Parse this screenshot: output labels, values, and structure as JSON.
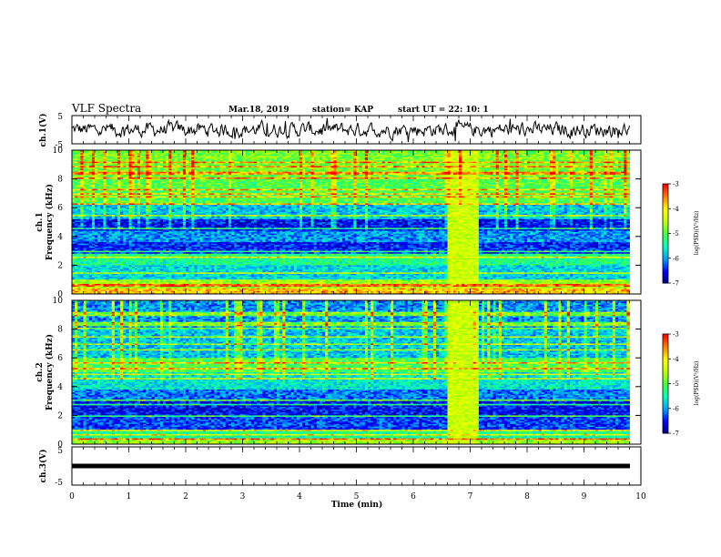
{
  "header": {
    "title": "VLF Spectra",
    "date": "Mar.18, 2019",
    "station": "station= KAP",
    "start_time": "start  UT =   22: 10: 1"
  },
  "chart_data": [
    {
      "type": "line",
      "name": "ch1-waveform",
      "ylabel": "ch.1(V)",
      "xlim": [
        0,
        10
      ],
      "ylim": [
        -5,
        5
      ],
      "yticks": [
        "5",
        "-5"
      ],
      "description_values": {
        "x_end": 9.8,
        "baseline": 0.0,
        "approx_amplitude": 2.0
      }
    },
    {
      "type": "heatmap",
      "name": "ch1-spectrogram",
      "ylabel": "ch.1\nFrequency (kHz)",
      "xlim": [
        0,
        10
      ],
      "ylim": [
        0,
        10
      ],
      "yticks": [
        "0",
        "2",
        "4",
        "6",
        "8",
        "10"
      ],
      "data_x_end": 9.8,
      "burst_interval_min": [
        6.6,
        7.15
      ],
      "bands_khz": [
        {
          "from": 0.0,
          "to": 0.4,
          "level": -5.0
        },
        {
          "from": 0.4,
          "to": 1.0,
          "level": -4.6
        },
        {
          "from": 1.0,
          "to": 2.0,
          "level": -5.7
        },
        {
          "from": 2.0,
          "to": 2.6,
          "level": -5.3
        },
        {
          "from": 2.6,
          "to": 3.6,
          "level": -6.4
        },
        {
          "from": 3.6,
          "to": 4.4,
          "level": -6.0
        },
        {
          "from": 4.4,
          "to": 5.2,
          "level": -6.5
        },
        {
          "from": 5.2,
          "to": 6.2,
          "level": -5.8
        },
        {
          "from": 6.2,
          "to": 8.0,
          "level": -5.0
        },
        {
          "from": 8.0,
          "to": 10.0,
          "level": -4.8
        }
      ],
      "colorbar": {
        "label": "log(PSD)(V²/Hz)",
        "range": [
          -7,
          -3
        ],
        "ticks": [
          "-3",
          "-4",
          "-5",
          "-6",
          "-7"
        ]
      }
    },
    {
      "type": "heatmap",
      "name": "ch2-spectrogram",
      "ylabel": "ch.2\nFrequency (kHz)",
      "xlim": [
        0,
        10
      ],
      "ylim": [
        0,
        10
      ],
      "yticks": [
        "0",
        "2",
        "4",
        "6",
        "8",
        "10"
      ],
      "data_x_end": 9.8,
      "burst_interval_min": [
        6.6,
        7.15
      ],
      "bands_khz": [
        {
          "from": 0.0,
          "to": 0.4,
          "level": -4.6
        },
        {
          "from": 0.4,
          "to": 1.0,
          "level": -5.3
        },
        {
          "from": 1.0,
          "to": 2.0,
          "level": -6.3
        },
        {
          "from": 2.0,
          "to": 3.0,
          "level": -6.5
        },
        {
          "from": 3.0,
          "to": 3.8,
          "level": -6.1
        },
        {
          "from": 3.8,
          "to": 5.0,
          "level": -5.6
        },
        {
          "from": 5.0,
          "to": 6.0,
          "level": -5.0
        },
        {
          "from": 6.0,
          "to": 8.0,
          "level": -5.8
        },
        {
          "from": 8.0,
          "to": 10.0,
          "level": -6.0
        }
      ],
      "colorbar": {
        "label": "log(PSD)(V²/Hz)",
        "range": [
          -7,
          -3
        ],
        "ticks": [
          "-3",
          "-4",
          "-5",
          "-6",
          "-7"
        ]
      }
    },
    {
      "type": "line",
      "name": "ch3-waveform",
      "ylabel": "ch.3(V)",
      "xlim": [
        0,
        10
      ],
      "ylim": [
        -5,
        5
      ],
      "yticks": [
        "5",
        "-5"
      ],
      "description_values": {
        "x_end": 9.8,
        "baseline": 0.0
      }
    }
  ],
  "xaxis": {
    "label": "Time  (min)",
    "ticks": [
      "0",
      "1",
      "2",
      "3",
      "4",
      "5",
      "6",
      "7",
      "8",
      "9",
      "10"
    ]
  },
  "colors": {
    "colormap": [
      "#000080",
      "#0000ff",
      "#00a0ff",
      "#00ffc0",
      "#40ff40",
      "#c0ff00",
      "#ffff00",
      "#ff8000",
      "#ff0000",
      "#ffffff"
    ]
  }
}
